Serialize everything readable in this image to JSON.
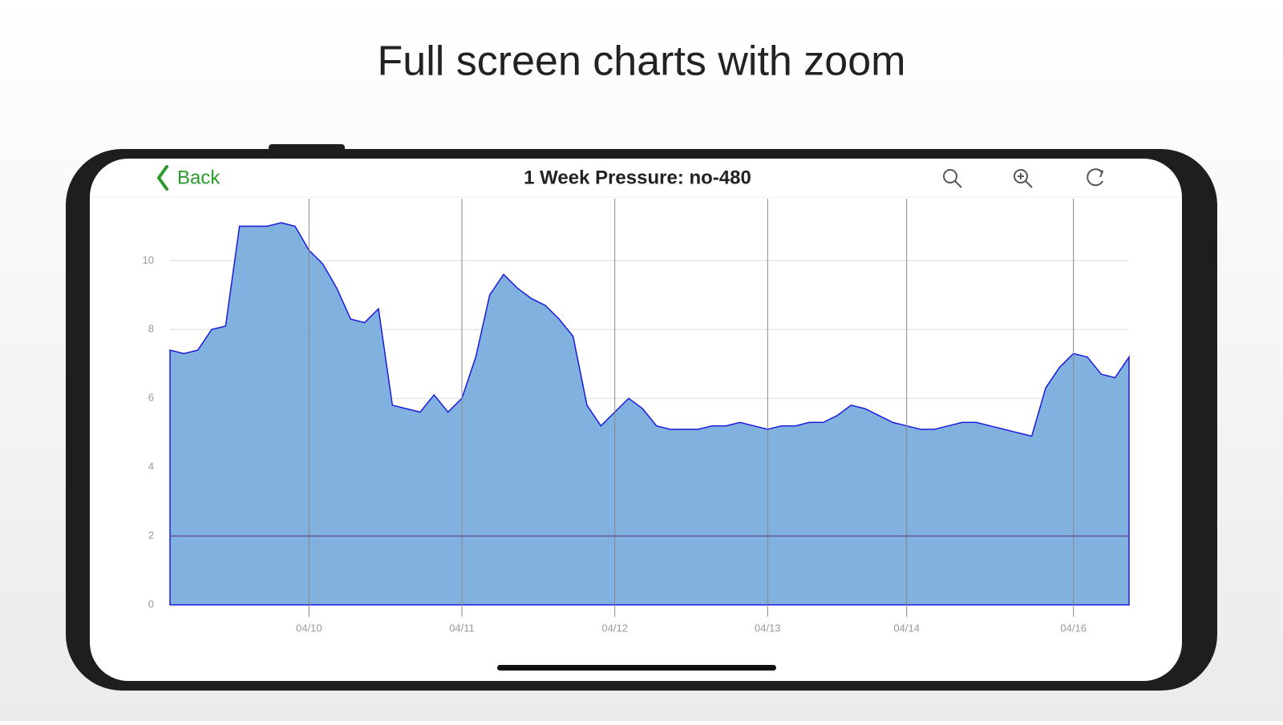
{
  "headline": "Full screen charts with zoom",
  "app": {
    "back": "Back",
    "title": "1 Week Pressure: no-480"
  },
  "chart_data": {
    "type": "area",
    "categories": [
      null,
      null,
      null,
      null,
      null,
      null,
      null,
      null,
      null,
      null,
      "04/10",
      null,
      null,
      null,
      null,
      null,
      null,
      null,
      null,
      null,
      null,
      "04/11",
      null,
      null,
      null,
      null,
      null,
      null,
      null,
      null,
      null,
      null,
      "04/12",
      null,
      null,
      null,
      null,
      null,
      null,
      null,
      null,
      null,
      null,
      "04/13",
      null,
      null,
      null,
      null,
      null,
      null,
      null,
      null,
      null,
      "04/14",
      null,
      null,
      null,
      null,
      null,
      null,
      null,
      null,
      null,
      null,
      null,
      "04/16",
      null,
      null,
      null,
      null
    ],
    "values": [
      7.4,
      7.3,
      7.4,
      8.0,
      8.1,
      11.0,
      11.0,
      11.0,
      11.1,
      11.0,
      10.3,
      9.9,
      9.2,
      8.3,
      8.2,
      8.6,
      5.8,
      5.7,
      5.6,
      6.1,
      5.6,
      6.0,
      7.2,
      9.0,
      9.6,
      9.2,
      8.9,
      8.7,
      8.3,
      7.8,
      5.8,
      5.2,
      5.6,
      6.0,
      5.7,
      5.2,
      5.1,
      5.1,
      5.1,
      5.2,
      5.2,
      5.3,
      5.2,
      5.1,
      5.2,
      5.2,
      5.3,
      5.3,
      5.5,
      5.8,
      5.7,
      5.5,
      5.3,
      5.2,
      5.1,
      5.1,
      5.2,
      5.3,
      5.3,
      5.2,
      5.1,
      5.0,
      4.9,
      6.3,
      6.9,
      7.3,
      7.2,
      6.7,
      6.6,
      7.2
    ],
    "color": "#7aaddd",
    "line_color": "#1a1adf",
    "ylim": [
      0,
      11.8
    ],
    "yticks": [
      0,
      2,
      4,
      6,
      8,
      10
    ],
    "grid": true,
    "reference_line": 2,
    "reference_color": "#6a4fa0"
  }
}
